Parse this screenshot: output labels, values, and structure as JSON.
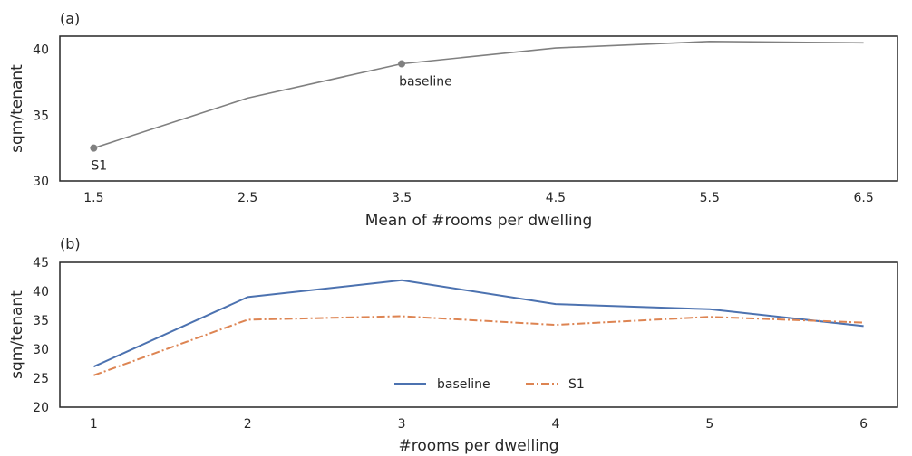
{
  "chart_data": [
    {
      "type": "line",
      "panel_label": "(a)",
      "title": "",
      "xlabel": "Mean of #rooms per dwelling",
      "ylabel": "sqm/tenant",
      "x": [
        1.5,
        2.5,
        3.5,
        4.5,
        5.5,
        6.5
      ],
      "x_ticks": [
        "1.5",
        "2.5",
        "3.5",
        "4.5",
        "5.5",
        "6.5"
      ],
      "ylim": [
        30,
        41
      ],
      "y_ticks": [
        "30",
        "35",
        "40"
      ],
      "series": [
        {
          "values": [
            32.5,
            36.3,
            38.9,
            40.1,
            40.6,
            40.5
          ],
          "color": "#808080"
        }
      ],
      "markers": [
        {
          "x": 1.5,
          "y": 32.5,
          "label": "S1"
        },
        {
          "x": 3.5,
          "y": 38.9,
          "label": "baseline"
        }
      ],
      "grid": false
    },
    {
      "type": "line",
      "panel_label": "(b)",
      "title": "",
      "xlabel": "#rooms per dwelling",
      "ylabel": "sqm/tenant",
      "x": [
        1,
        2,
        3,
        4,
        5,
        6
      ],
      "x_ticks": [
        "1",
        "2",
        "3",
        "4",
        "5",
        "6"
      ],
      "ylim": [
        20,
        45
      ],
      "y_ticks": [
        "20",
        "25",
        "30",
        "35",
        "40",
        "45"
      ],
      "series": [
        {
          "name": "baseline",
          "values": [
            27.0,
            39.0,
            41.9,
            37.8,
            36.9,
            34.0
          ],
          "color": "#4c72b0",
          "dash": "solid"
        },
        {
          "name": "S1",
          "values": [
            25.5,
            35.1,
            35.7,
            34.2,
            35.6,
            34.6
          ],
          "color": "#dd8452",
          "dash": "dashdot"
        }
      ],
      "legend": "lower-center",
      "grid": false
    }
  ]
}
